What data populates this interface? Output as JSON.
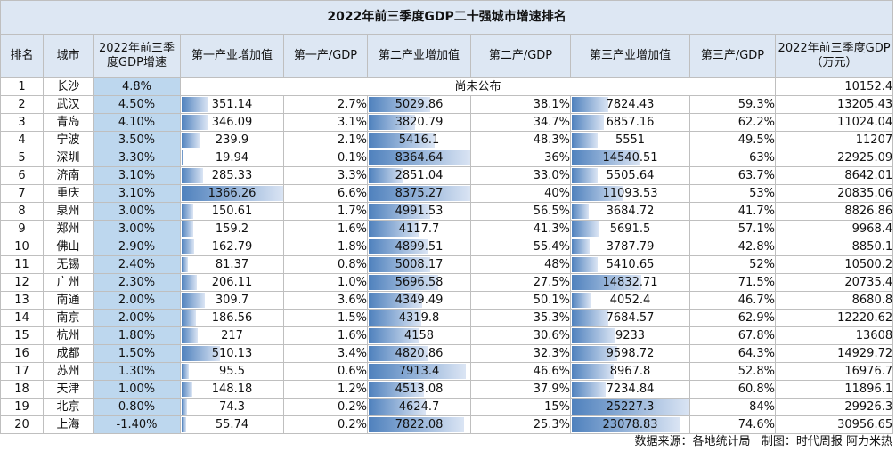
{
  "title": "2022年前三季度GDP二十强城市增速排名",
  "headers": [
    "排名",
    "城市",
    "2022年前三季度GDP增速",
    "第一产业增加值",
    "第一产/GDP",
    "第二产业增加值",
    "第二产/GDP",
    "第三产业增加值",
    "第三产/GDP",
    "2022年前三季度GDP（万元）"
  ],
  "unpublished_label": "尚未公布",
  "rows": [
    {
      "rank": "1",
      "city": "长沙",
      "growth": "4.8%",
      "p1": "",
      "p1_share": "",
      "p2": "",
      "p2_share": "",
      "p3": "",
      "p3_share": "",
      "gdp": "10152.4",
      "unpublished": true
    },
    {
      "rank": "2",
      "city": "武汉",
      "growth": "4.50%",
      "p1": "351.14",
      "p1_share": "2.7%",
      "p2": "5029.86",
      "p2_share": "38.1%",
      "p3": "7824.43",
      "p3_share": "59.3%",
      "gdp": "13205.43"
    },
    {
      "rank": "3",
      "city": "青岛",
      "growth": "4.10%",
      "p1": "346.09",
      "p1_share": "3.1%",
      "p2": "3820.79",
      "p2_share": "34.7%",
      "p3": "6857.16",
      "p3_share": "62.2%",
      "gdp": "11024.04"
    },
    {
      "rank": "4",
      "city": "宁波",
      "growth": "3.50%",
      "p1": "239.9",
      "p1_share": "2.1%",
      "p2": "5416.1",
      "p2_share": "48.3%",
      "p3": "5551",
      "p3_share": "49.5%",
      "gdp": "11207"
    },
    {
      "rank": "5",
      "city": "深圳",
      "growth": "3.30%",
      "p1": "19.94",
      "p1_share": "0.1%",
      "p2": "8364.64",
      "p2_share": "36%",
      "p3": "14540.51",
      "p3_share": "63%",
      "gdp": "22925.09"
    },
    {
      "rank": "6",
      "city": "济南",
      "growth": "3.10%",
      "p1": "285.33",
      "p1_share": "3.3%",
      "p2": "2851.04",
      "p2_share": "33.0%",
      "p3": "5505.64",
      "p3_share": "63.7%",
      "gdp": "8642.01"
    },
    {
      "rank": "7",
      "city": "重庆",
      "growth": "3.10%",
      "p1": "1366.26",
      "p1_share": "6.6%",
      "p2": "8375.27",
      "p2_share": "40%",
      "p3": "11093.53",
      "p3_share": "53%",
      "gdp": "20835.06"
    },
    {
      "rank": "8",
      "city": "泉州",
      "growth": "3.00%",
      "p1": "150.61",
      "p1_share": "1.7%",
      "p2": "4991.53",
      "p2_share": "56.5%",
      "p3": "3684.72",
      "p3_share": "41.7%",
      "gdp": "8826.86"
    },
    {
      "rank": "9",
      "city": "郑州",
      "growth": "3.00%",
      "p1": "159.2",
      "p1_share": "1.6%",
      "p2": "4117.7",
      "p2_share": "41.3%",
      "p3": "5691.5",
      "p3_share": "57.1%",
      "gdp": "9968.4"
    },
    {
      "rank": "10",
      "city": "佛山",
      "growth": "2.90%",
      "p1": "162.79",
      "p1_share": "1.8%",
      "p2": "4899.51",
      "p2_share": "55.4%",
      "p3": "3787.79",
      "p3_share": "42.8%",
      "gdp": "8850.1"
    },
    {
      "rank": "11",
      "city": "无锡",
      "growth": "2.40%",
      "p1": "81.37",
      "p1_share": "0.8%",
      "p2": "5008.17",
      "p2_share": "48%",
      "p3": "5410.65",
      "p3_share": "52%",
      "gdp": "10500.2"
    },
    {
      "rank": "12",
      "city": "广州",
      "growth": "2.30%",
      "p1": "206.11",
      "p1_share": "1.0%",
      "p2": "5696.58",
      "p2_share": "27.5%",
      "p3": "14832.71",
      "p3_share": "71.5%",
      "gdp": "20735.4"
    },
    {
      "rank": "13",
      "city": "南通",
      "growth": "2.00%",
      "p1": "309.7",
      "p1_share": "3.6%",
      "p2": "4349.49",
      "p2_share": "50.1%",
      "p3": "4052.4",
      "p3_share": "46.7%",
      "gdp": "8680.8"
    },
    {
      "rank": "14",
      "city": "南京",
      "growth": "2.00%",
      "p1": "186.56",
      "p1_share": "1.5%",
      "p2": "4319.8",
      "p2_share": "35.3%",
      "p3": "7684.57",
      "p3_share": "62.9%",
      "gdp": "12220.62"
    },
    {
      "rank": "15",
      "city": "杭州",
      "growth": "1.80%",
      "p1": "217",
      "p1_share": "1.6%",
      "p2": "4158",
      "p2_share": "30.6%",
      "p3": "9233",
      "p3_share": "67.8%",
      "gdp": "13608"
    },
    {
      "rank": "16",
      "city": "成都",
      "growth": "1.50%",
      "p1": "510.13",
      "p1_share": "3.4%",
      "p2": "4820.86",
      "p2_share": "32.3%",
      "p3": "9598.72",
      "p3_share": "64.3%",
      "gdp": "14929.72"
    },
    {
      "rank": "17",
      "city": "苏州",
      "growth": "1.30%",
      "p1": "95.5",
      "p1_share": "0.6%",
      "p2": "7913.4",
      "p2_share": "46.6%",
      "p3": "8967.8",
      "p3_share": "52.8%",
      "gdp": "16976.7"
    },
    {
      "rank": "18",
      "city": "天津",
      "growth": "1.00%",
      "p1": "148.18",
      "p1_share": "1.2%",
      "p2": "4513.08",
      "p2_share": "37.9%",
      "p3": "7234.84",
      "p3_share": "60.8%",
      "gdp": "11896.1"
    },
    {
      "rank": "19",
      "city": "北京",
      "growth": "0.80%",
      "p1": "74.3",
      "p1_share": "0.2%",
      "p2": "4624.7",
      "p2_share": "15%",
      "p3": "25227.3",
      "p3_share": "84%",
      "gdp": "29926.3"
    },
    {
      "rank": "20",
      "city": "上海",
      "growth": "-1.40%",
      "p1": "55.74",
      "p1_share": "0.2%",
      "p2": "7822.08",
      "p2_share": "25.3%",
      "p3": "23078.83",
      "p3_share": "74.6%",
      "gdp": "30956.65"
    }
  ],
  "footer": {
    "source": "数据来源：各地统计局",
    "credit": "制图：时代周报 阿力米热"
  },
  "colors": {
    "header_bg": "#dde7f3",
    "growth_bg": "#bdd7ee",
    "bar": "#4f81bd",
    "border": "#bfbfbf"
  }
}
